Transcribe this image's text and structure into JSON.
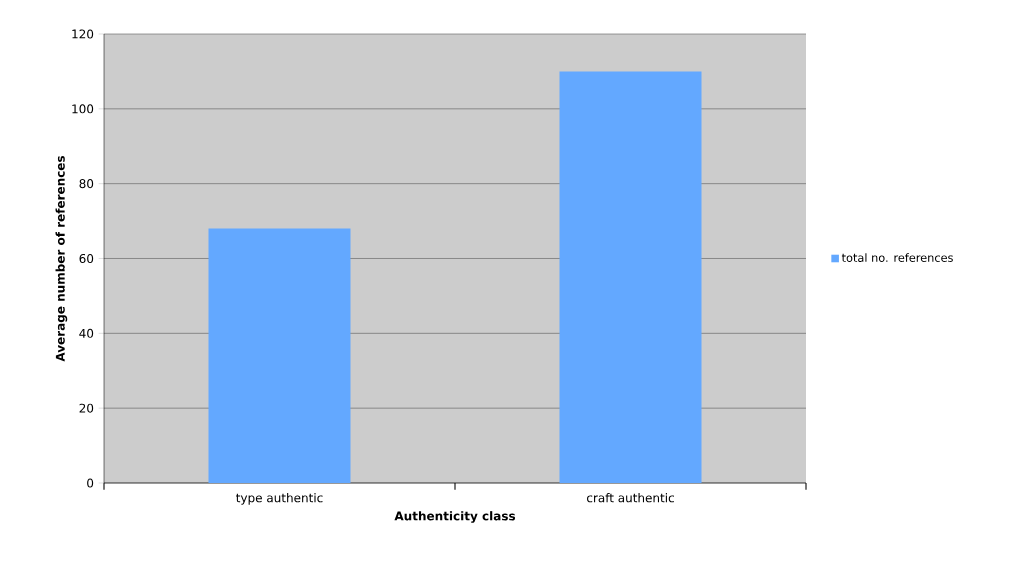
{
  "chart_data": {
    "type": "bar",
    "xlabel": "Authenticity class",
    "ylabel": "Average number of references",
    "categories": [
      "type authentic",
      "craft authentic"
    ],
    "series": [
      {
        "name": "total no. references",
        "color": "#63a8ff",
        "values": [
          68,
          110
        ]
      }
    ],
    "ylim": [
      0,
      120
    ],
    "yticks": [
      0,
      20,
      40,
      60,
      80,
      100,
      120
    ],
    "grid": "y",
    "legend": "right"
  }
}
